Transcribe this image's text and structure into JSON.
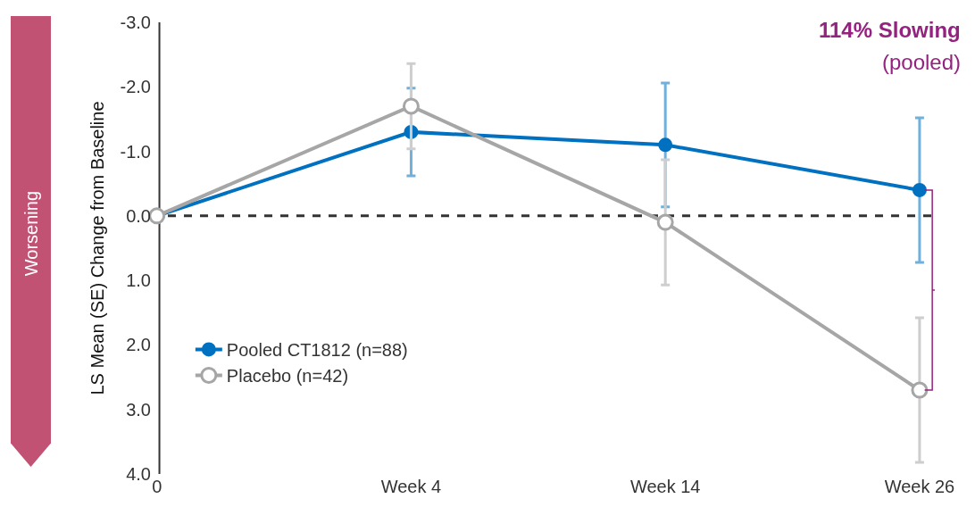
{
  "chart_data": {
    "type": "line",
    "ylabel": "LS Mean (SE) Change from Baseline",
    "categories": [
      "0",
      "Week 4",
      "Week 14",
      "Week 26"
    ],
    "ylim": [
      4.0,
      -3.0
    ],
    "yticks": [
      {
        "value": -3,
        "label": "-3.0"
      },
      {
        "value": -2,
        "label": "-2.0"
      },
      {
        "value": -1,
        "label": "-1.0"
      },
      {
        "value": 0,
        "label": "0.0"
      },
      {
        "value": 1,
        "label": "1.0"
      },
      {
        "value": 2,
        "label": "2.0"
      },
      {
        "value": 3,
        "label": "3.0"
      },
      {
        "value": 4,
        "label": "4.0"
      }
    ],
    "series": [
      {
        "name": "Pooled CT1812 (n=88)",
        "color": "#0070c0",
        "values": [
          0,
          -1.3,
          -1.1,
          -0.4
        ],
        "errors": [
          null,
          0.68,
          0.96,
          1.12
        ]
      },
      {
        "name": "Placebo (n=42)",
        "color": "#a6a6a6",
        "values": [
          0,
          -1.7,
          0.1,
          2.7
        ],
        "errors": [
          null,
          0.66,
          0.97,
          1.12
        ]
      }
    ],
    "ref_lines": [
      {
        "axis": "y",
        "value": 0,
        "color": "#333333",
        "line_style": "dashed"
      }
    ],
    "annotations": [
      "114% Slowing",
      "(pooled)",
      "Worsening"
    ],
    "marker": "circle",
    "legend": "bottom left",
    "grid": false
  }
}
